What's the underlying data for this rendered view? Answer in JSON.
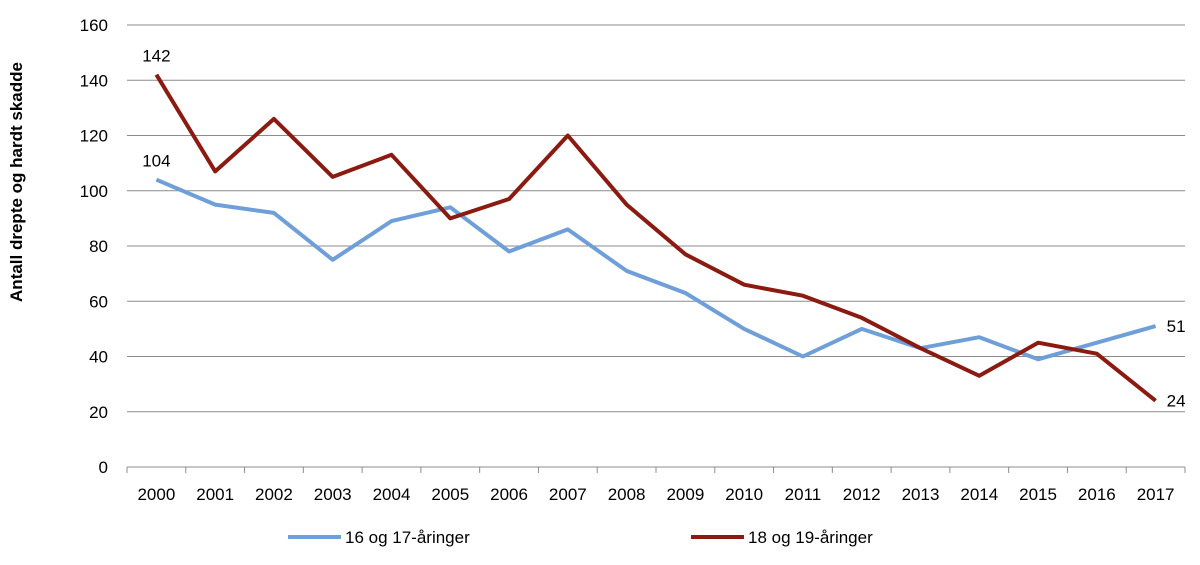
{
  "chart_data": {
    "type": "line",
    "title": "",
    "xlabel": "",
    "ylabel": "Antall drepte og hardt skadde",
    "ylim": [
      0,
      160
    ],
    "yticks": [
      0,
      20,
      40,
      60,
      80,
      100,
      120,
      140,
      160
    ],
    "grid": "horizontal",
    "legend_position": "bottom",
    "x": [
      "2000",
      "2001",
      "2002",
      "2003",
      "2004",
      "2005",
      "2006",
      "2007",
      "2008",
      "2009",
      "2010",
      "2011",
      "2012",
      "2013",
      "2014",
      "2015",
      "2016",
      "2017"
    ],
    "series": [
      {
        "name": "16 og 17-åringer",
        "color": "#6f9fd8",
        "values": [
          104,
          95,
          92,
          75,
          89,
          94,
          78,
          86,
          71,
          63,
          50,
          40,
          50,
          43,
          47,
          39,
          45,
          51
        ],
        "data_labels": [
          {
            "index": 0,
            "text": "104"
          },
          {
            "index": 17,
            "text": "51"
          }
        ]
      },
      {
        "name": "18 og 19-åringer",
        "color": "#8b1a10",
        "values": [
          142,
          107,
          126,
          105,
          113,
          90,
          97,
          120,
          95,
          77,
          66,
          62,
          54,
          43,
          33,
          45,
          41,
          24
        ],
        "data_labels": [
          {
            "index": 0,
            "text": "142"
          },
          {
            "index": 17,
            "text": "24"
          }
        ]
      }
    ]
  }
}
